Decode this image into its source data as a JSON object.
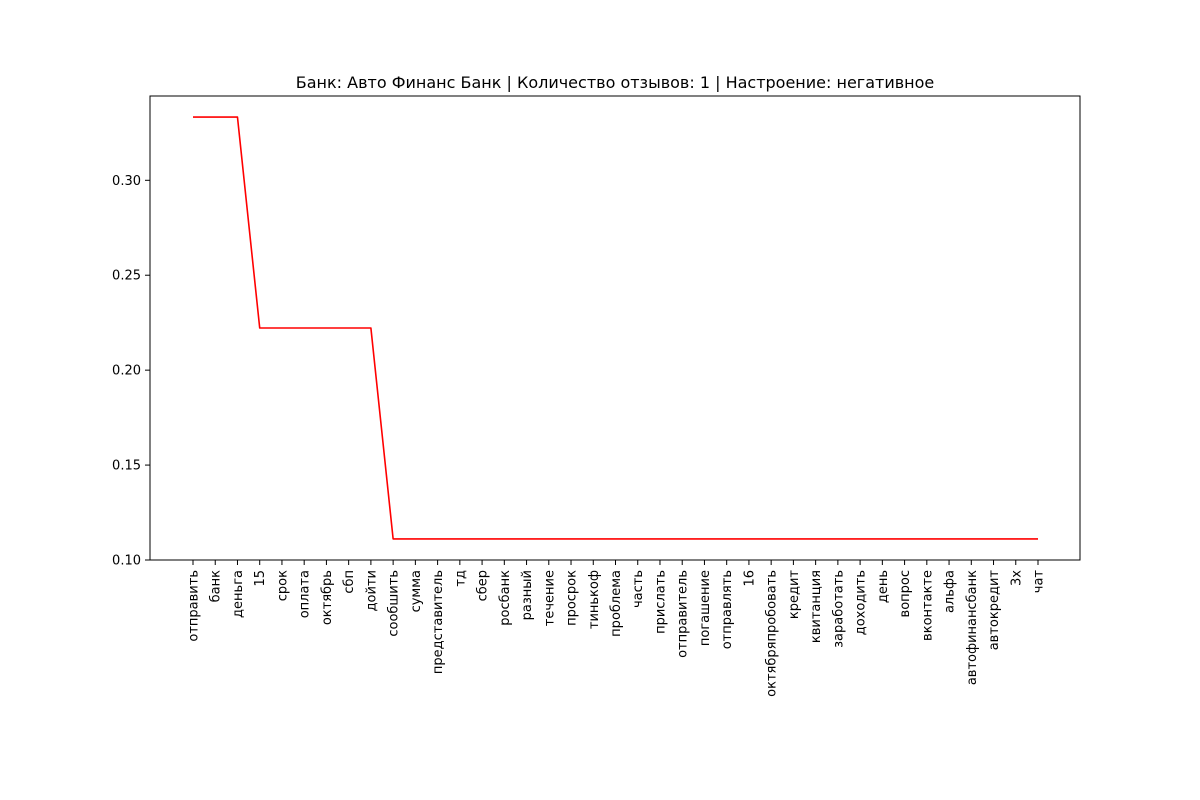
{
  "chart_data": {
    "type": "line",
    "title": "Банк: Авто Финанс Банк | Количество отзывов: 1 | Настроение: негативное",
    "xlabel": "",
    "ylabel": "",
    "categories": [
      "отправить",
      "банк",
      "деньга",
      "15",
      "срок",
      "оплата",
      "октябрь",
      "сбп",
      "дойти",
      "сообшить",
      "сумма",
      "представитель",
      "тд",
      "сбер",
      "росбанк",
      "разный",
      "течение",
      "просрок",
      "тинькоф",
      "проблема",
      "часть",
      "прислать",
      "отправитель",
      "погашение",
      "отправлять",
      "16",
      "октябряпробовать",
      "кредит",
      "квитанция",
      "заработать",
      "доходить",
      "день",
      "вопрос",
      "вконтакте",
      "альфа",
      "автофинансбанк",
      "автокредит",
      "3х",
      "чат"
    ],
    "series": [
      {
        "color": "#ff0000",
        "values": [
          0.3333,
          0.3333,
          0.3333,
          0.2222,
          0.2222,
          0.2222,
          0.2222,
          0.2222,
          0.2222,
          0.1111,
          0.1111,
          0.1111,
          0.1111,
          0.1111,
          0.1111,
          0.1111,
          0.1111,
          0.1111,
          0.1111,
          0.1111,
          0.1111,
          0.1111,
          0.1111,
          0.1111,
          0.1111,
          0.1111,
          0.1111,
          0.1111,
          0.1111,
          0.1111,
          0.1111,
          0.1111,
          0.1111,
          0.1111,
          0.1111,
          0.1111,
          0.1111,
          0.1111,
          0.1111
        ]
      }
    ],
    "ylim": [
      0.1,
      0.3444
    ],
    "yticks": [
      "0.10",
      "0.15",
      "0.20",
      "0.25",
      "0.30"
    ],
    "grid": false,
    "legend": "none"
  }
}
